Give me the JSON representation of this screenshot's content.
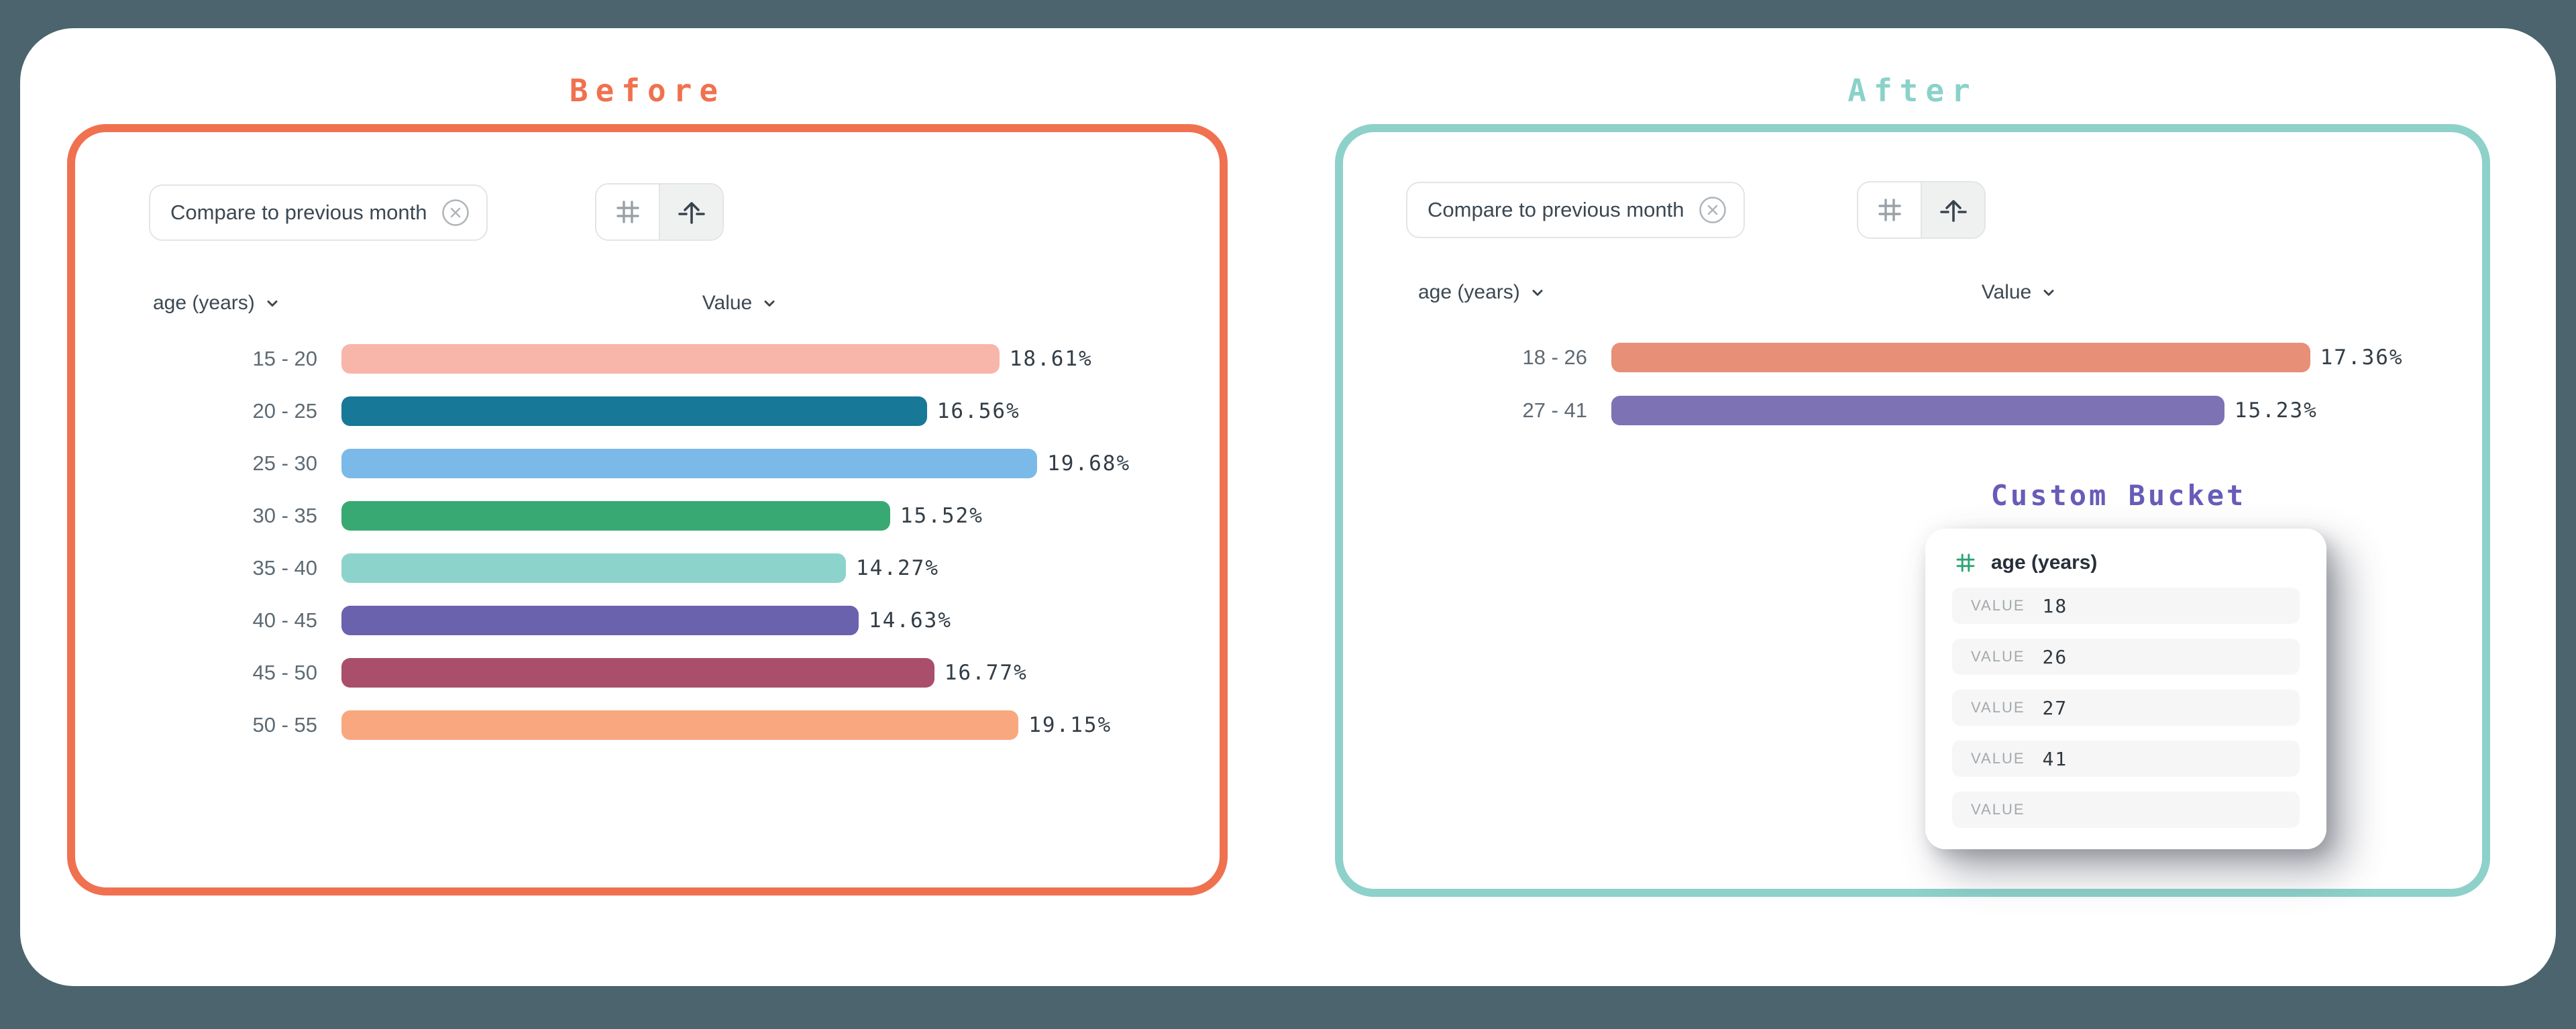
{
  "canvas": {
    "background_color": "#4B646E",
    "card_color": "#FFFFFF"
  },
  "before": {
    "title": "Before",
    "accent_color": "#F0714F",
    "chip": {
      "label": "Compare to previous month"
    },
    "toolbar": {
      "buttons": [
        {
          "icon": "hash",
          "active": false
        },
        {
          "icon": "arrow-up-from-line",
          "active": true
        }
      ]
    },
    "columns": {
      "dimension": "age (years)",
      "measure": "Value"
    },
    "chart_data": {
      "type": "bar",
      "orientation": "horizontal",
      "title": "",
      "xlabel": "Value",
      "ylabel": "age (years)",
      "xlim": [
        0,
        20
      ],
      "categories": [
        "15 - 20",
        "20 - 25",
        "25 - 30",
        "30 - 35",
        "35 - 40",
        "40 - 45",
        "45 - 50",
        "50 - 55"
      ],
      "values": [
        18.61,
        16.56,
        19.68,
        15.52,
        14.27,
        14.63,
        16.77,
        19.15
      ],
      "labels": [
        "18.61%",
        "16.56%",
        "19.68%",
        "15.52%",
        "14.27%",
        "14.63%",
        "16.77%",
        "19.15%"
      ],
      "colors": [
        "#F7B6A9",
        "#177897",
        "#7BBAE8",
        "#38A972",
        "#8CD3CC",
        "#6B62AE",
        "#A94E6B",
        "#F9A77F"
      ]
    }
  },
  "after": {
    "title": "After",
    "accent_color": "#8AD2C9",
    "border_color": "#8DD1CA",
    "chip": {
      "label": "Compare to previous month"
    },
    "toolbar": {
      "buttons": [
        {
          "icon": "hash",
          "active": false
        },
        {
          "icon": "arrow-up-from-line",
          "active": true
        }
      ]
    },
    "columns": {
      "dimension": "age (years)",
      "measure": "Value"
    },
    "chart_data": {
      "type": "bar",
      "orientation": "horizontal",
      "title": "",
      "xlabel": "Value",
      "ylabel": "age (years)",
      "xlim": [
        0,
        18
      ],
      "categories": [
        "18 - 26",
        "27 - 41"
      ],
      "values": [
        17.36,
        15.23
      ],
      "labels": [
        "17.36%",
        "15.23%"
      ],
      "colors": [
        "#E88F78",
        "#7C72B4"
      ]
    }
  },
  "custom_bucket": {
    "title": "Custom Bucket",
    "accent_color": "#675CB8",
    "field": {
      "icon": "hash",
      "icon_color": "#29A472",
      "label": "age (years)"
    },
    "value_rows": [
      {
        "label": "VALUE",
        "value": "18"
      },
      {
        "label": "VALUE",
        "value": "26"
      },
      {
        "label": "VALUE",
        "value": "27"
      },
      {
        "label": "VALUE",
        "value": "41"
      },
      {
        "label": "VALUE",
        "value": ""
      }
    ]
  }
}
